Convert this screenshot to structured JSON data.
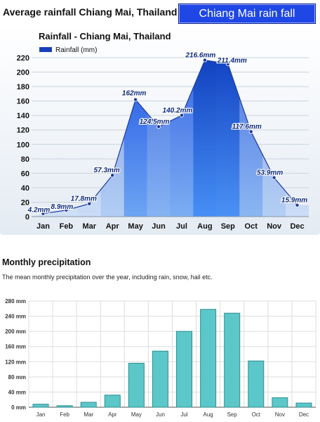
{
  "header": {
    "title": "Average rainfall Chiang Mai, Thailand",
    "badge": "Chiang Mai rain fall"
  },
  "section": {
    "title": "Monthly precipitation",
    "subtitle": "The mean monthly precipitation over the year, including rain, snow, hail etc."
  },
  "colors": {
    "badge_bg": "#1f47e6",
    "area_dark": "#1a3fb8",
    "area_light": "#cfe3ff",
    "bar_fill": "#5cc7c9",
    "bar_stroke": "#2c8e91"
  },
  "chart_data": [
    {
      "type": "area",
      "title": "Rainfall - Chiang Mai, Thailand",
      "legend": "Rainfall (mm)",
      "legend_position": "top-left",
      "categories": [
        "Jan",
        "Feb",
        "Mar",
        "Apr",
        "May",
        "Jun",
        "Jul",
        "Aug",
        "Sep",
        "Oct",
        "Nov",
        "Dec"
      ],
      "series": [
        {
          "name": "Rainfall (mm)",
          "values": [
            4.2,
            8.9,
            17.8,
            57.3,
            162,
            124.5,
            140.2,
            216.6,
            211.4,
            117.6,
            53.9,
            15.9
          ]
        }
      ],
      "data_labels": [
        "4.2mm",
        "8.9mm",
        "17.8mm",
        "57.3mm",
        "162mm",
        "124.5mm",
        "140.2mm",
        "216.6mm",
        "211.4mm",
        "117.6mm",
        "53.9mm",
        "15.9mm"
      ],
      "yticks": [
        "0",
        "20",
        "40",
        "60",
        "80",
        "100",
        "120",
        "140",
        "160",
        "180",
        "200",
        "220"
      ],
      "ylim": [
        0,
        220
      ],
      "grid": true
    },
    {
      "type": "bar",
      "categories": [
        "Jan",
        "Feb",
        "Mar",
        "Apr",
        "May",
        "Jun",
        "Jul",
        "Aug",
        "Sep",
        "Oct",
        "Nov",
        "Dec"
      ],
      "values": [
        8,
        4,
        13,
        32,
        116,
        148,
        200,
        258,
        248,
        122,
        25,
        11
      ],
      "yticks": [
        "0 mm",
        "40 mm",
        "80 mm",
        "120 mm",
        "160 mm",
        "200 mm",
        "240 mm",
        "280 mm"
      ],
      "ylim": [
        0,
        280
      ],
      "grid": true
    }
  ]
}
